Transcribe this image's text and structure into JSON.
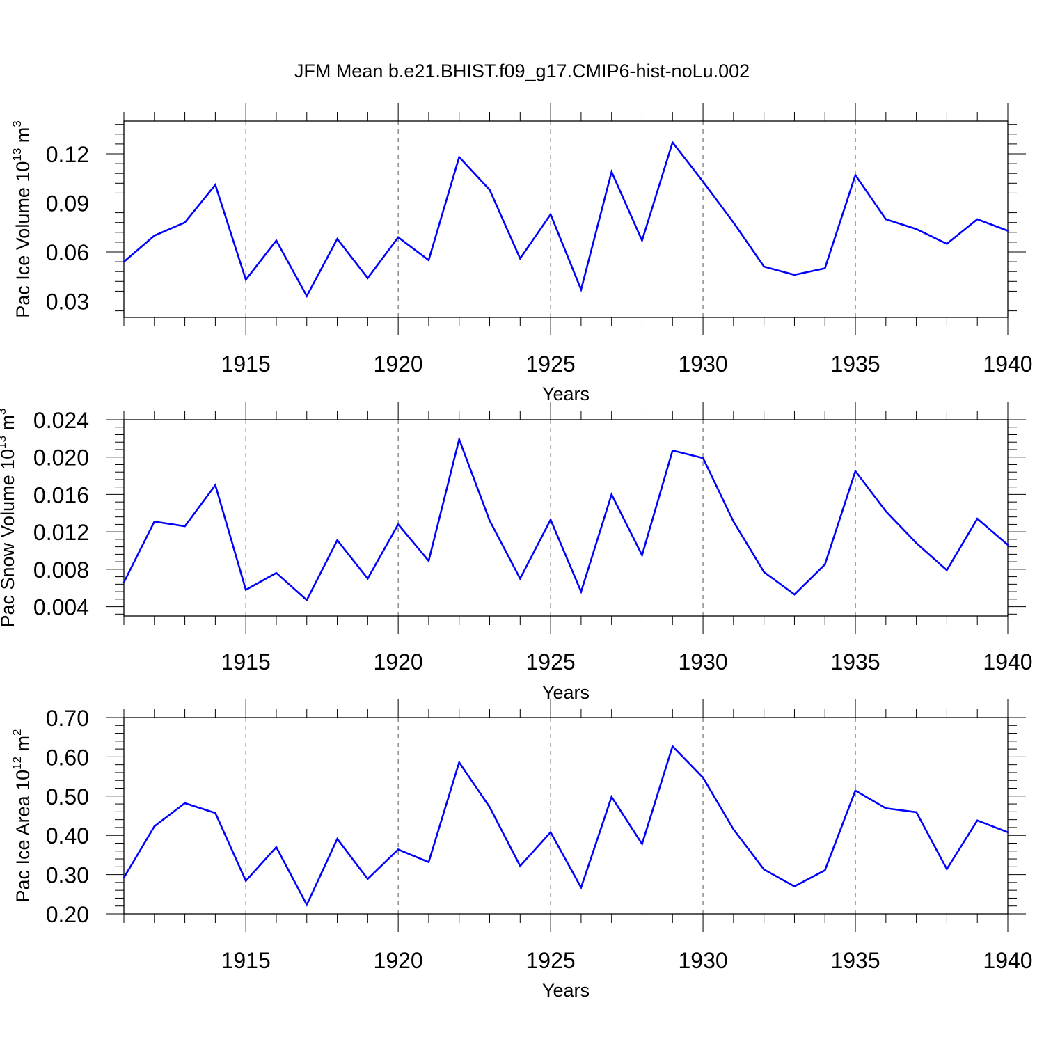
{
  "figure": {
    "title": "JFM Mean b.e21.BHIST.f09_g17.CMIP6-hist-noLu.002"
  },
  "style": {
    "line_color": "#0000ff",
    "axis_color": "#000000",
    "grid_color": "#555555"
  },
  "chart_data": [
    {
      "type": "line",
      "xlabel": "Years",
      "ylabel_main": "Pac Ice Volume 10",
      "ylabel_exp": "13",
      "ylabel_unit": " m",
      "ylabel_unit_exp": "3",
      "xlim": [
        1911,
        1940
      ],
      "ylim": [
        0.02,
        0.14
      ],
      "yticks": [
        0.03,
        0.06,
        0.09,
        0.12
      ],
      "ytick_labels": [
        "0.03",
        "0.06",
        "0.09",
        "0.12"
      ],
      "xticks": [
        1915,
        1920,
        1925,
        1930,
        1935,
        1940
      ],
      "xtick_labels": [
        "1915",
        "1920",
        "1925",
        "1930",
        "1935",
        "1940"
      ],
      "grid": "vertical dashed at major x ticks",
      "x": [
        1911,
        1912,
        1913,
        1914,
        1915,
        1916,
        1917,
        1918,
        1919,
        1920,
        1921,
        1922,
        1923,
        1924,
        1925,
        1926,
        1927,
        1928,
        1929,
        1930,
        1931,
        1932,
        1933,
        1934,
        1935,
        1936,
        1937,
        1938,
        1939,
        1940
      ],
      "values": [
        0.054,
        0.07,
        0.078,
        0.101,
        0.043,
        0.067,
        0.033,
        0.068,
        0.044,
        0.069,
        0.055,
        0.118,
        0.098,
        0.056,
        0.083,
        0.037,
        0.109,
        0.067,
        0.127,
        0.103,
        0.078,
        0.051,
        0.046,
        0.05,
        0.107,
        0.08,
        0.074,
        0.065,
        0.08,
        0.073
      ]
    },
    {
      "type": "line",
      "xlabel": "Years",
      "ylabel_main": "Pac Snow Volume 10",
      "ylabel_exp": "13",
      "ylabel_unit": " m",
      "ylabel_unit_exp": "3",
      "xlim": [
        1911,
        1940
      ],
      "ylim": [
        0.003,
        0.024
      ],
      "yticks": [
        0.004,
        0.008,
        0.012,
        0.016,
        0.02,
        0.024
      ],
      "ytick_labels": [
        "0.004",
        "0.008",
        "0.012",
        "0.016",
        "0.020",
        "0.024"
      ],
      "xticks": [
        1915,
        1920,
        1925,
        1930,
        1935,
        1940
      ],
      "xtick_labels": [
        "1915",
        "1920",
        "1925",
        "1930",
        "1935",
        "1940"
      ],
      "grid": "vertical dashed at major x ticks",
      "x": [
        1911,
        1912,
        1913,
        1914,
        1915,
        1916,
        1917,
        1918,
        1919,
        1920,
        1921,
        1922,
        1923,
        1924,
        1925,
        1926,
        1927,
        1928,
        1929,
        1930,
        1931,
        1932,
        1933,
        1934,
        1935,
        1936,
        1937,
        1938,
        1939,
        1940
      ],
      "values": [
        0.0066,
        0.0131,
        0.0126,
        0.017,
        0.0058,
        0.0076,
        0.0047,
        0.0111,
        0.007,
        0.0128,
        0.0089,
        0.0219,
        0.0132,
        0.007,
        0.0133,
        0.0056,
        0.016,
        0.0095,
        0.0207,
        0.0199,
        0.0131,
        0.0077,
        0.0053,
        0.0085,
        0.0185,
        0.0142,
        0.0108,
        0.0079,
        0.0134,
        0.0106
      ]
    },
    {
      "type": "line",
      "xlabel": "Years",
      "ylabel_main": "Pac Ice Area 10",
      "ylabel_exp": "12",
      "ylabel_unit": " m",
      "ylabel_unit_exp": "2",
      "xlim": [
        1911,
        1940
      ],
      "ylim": [
        0.2,
        0.7
      ],
      "yticks": [
        0.2,
        0.3,
        0.4,
        0.5,
        0.6,
        0.7
      ],
      "ytick_labels": [
        "0.20",
        "0.30",
        "0.40",
        "0.50",
        "0.60",
        "0.70"
      ],
      "xticks": [
        1915,
        1920,
        1925,
        1930,
        1935,
        1940
      ],
      "xtick_labels": [
        "1915",
        "1920",
        "1925",
        "1930",
        "1935",
        "1940"
      ],
      "grid": "vertical dashed at major x ticks",
      "x": [
        1911,
        1912,
        1913,
        1914,
        1915,
        1916,
        1917,
        1918,
        1919,
        1920,
        1921,
        1922,
        1923,
        1924,
        1925,
        1926,
        1927,
        1928,
        1929,
        1930,
        1931,
        1932,
        1933,
        1934,
        1935,
        1936,
        1937,
        1938,
        1939,
        1940
      ],
      "values": [
        0.292,
        0.423,
        0.482,
        0.457,
        0.284,
        0.37,
        0.223,
        0.391,
        0.289,
        0.364,
        0.332,
        0.586,
        0.472,
        0.322,
        0.408,
        0.267,
        0.498,
        0.378,
        0.627,
        0.547,
        0.415,
        0.313,
        0.27,
        0.311,
        0.514,
        0.469,
        0.459,
        0.314,
        0.438,
        0.408
      ]
    }
  ]
}
